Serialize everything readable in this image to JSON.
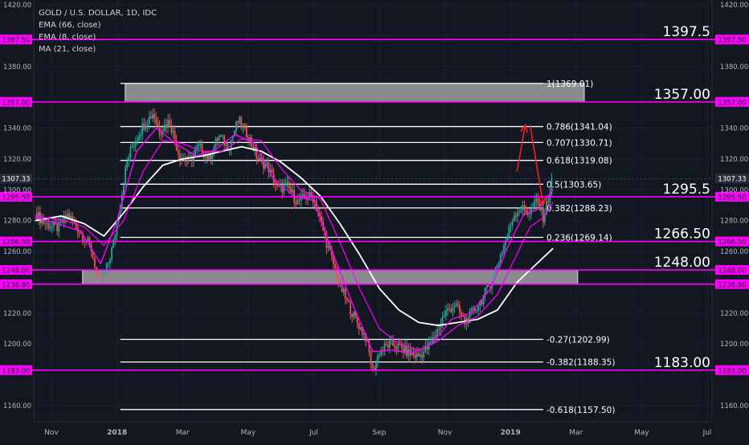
{
  "chart_data": {
    "type": "line",
    "symbol": "GOLD / U.S. DOLLAR, 1D, IDC",
    "indicators": [
      "EMA (66, close)",
      "EMA (8, close)",
      "MA (21, close)"
    ],
    "ylim": [
      1150,
      1420
    ],
    "y_ticks": [
      1160,
      1180,
      1200,
      1220,
      1240,
      1260,
      1280,
      1300,
      1320,
      1340,
      1360,
      1380,
      1400,
      1420
    ],
    "y_tick_labels": [
      "1160.00",
      "1180.00",
      "1200.00",
      "1220.00",
      "1240.00",
      "1260.00",
      "1280.00",
      "1300.00",
      "1320.00",
      "1340.00",
      "1360.00",
      "1380.00",
      "1400.00",
      "1420.00"
    ],
    "x_ticks": [
      {
        "label": "Nov",
        "month": 0
      },
      {
        "label": "2018",
        "month": 2
      },
      {
        "label": "Mar",
        "month": 4
      },
      {
        "label": "May",
        "month": 6
      },
      {
        "label": "Jul",
        "month": 8
      },
      {
        "label": "Sep",
        "month": 10
      },
      {
        "label": "Nov",
        "month": 12
      },
      {
        "label": "2019",
        "month": 14
      },
      {
        "label": "Mar",
        "month": 16
      },
      {
        "label": "May",
        "month": 18
      },
      {
        "label": "Jul",
        "month": 20
      }
    ],
    "current_price": {
      "value": 1307.33,
      "label": "1307.33"
    },
    "colors": {
      "background": "#131722",
      "up": "#26a69a",
      "down": "#ef5350",
      "level": "#ff00ff",
      "fib": "#ffffff",
      "ema66": "#ffffff",
      "ema8": "#ff00ff",
      "ma21": "#ff00ff",
      "zone": "#b2b2b2",
      "arrow": "#ff2020"
    },
    "price_levels": [
      {
        "value": 1397.5,
        "label": "1397.50",
        "big": "1397.5"
      },
      {
        "value": 1357.0,
        "label": "1357.00",
        "big": "1357.00"
      },
      {
        "value": 1295.5,
        "label": "1295.50",
        "big": "1295.5"
      },
      {
        "value": 1266.5,
        "label": "1266.50",
        "big": "1266.50"
      },
      {
        "value": 1248.0,
        "label": "1248.00",
        "big": "1248.00"
      },
      {
        "value": 1238.8,
        "label": "1238.80",
        "big": ""
      },
      {
        "value": 1183.0,
        "label": "1183.00",
        "big": "1183.00"
      }
    ],
    "zones": [
      {
        "from": 1357,
        "to": 1369,
        "start_month": 2.25,
        "end_month": 16.25
      },
      {
        "from": 1238.8,
        "to": 1248,
        "start_month": 0.95,
        "end_month": 16.05
      }
    ],
    "fib_levels": [
      {
        "value": 1369.01,
        "label": "1(1369.01)"
      },
      {
        "value": 1341.04,
        "label": "0.786(1341.04)"
      },
      {
        "value": 1330.71,
        "label": "0.707(1330.71)"
      },
      {
        "value": 1319.08,
        "label": "0.618(1319.08)"
      },
      {
        "value": 1303.65,
        "label": "0.5(1303.65)"
      },
      {
        "value": 1288.23,
        "label": "0.382(1288.23)"
      },
      {
        "value": 1269.14,
        "label": "0.236(1269.14)"
      },
      {
        "value": 1202.99,
        "label": "-0.27(1202.99)"
      },
      {
        "value": 1188.35,
        "label": "-0.382(1188.35)"
      },
      {
        "value": 1157.5,
        "label": "-0.618(1157.50)"
      }
    ],
    "fib_start_month": 2.1,
    "fib_end_month": 15.0,
    "price_path": [
      [
        -0.5,
        1285
      ],
      [
        -0.2,
        1278
      ],
      [
        0.2,
        1275
      ],
      [
        0.5,
        1284
      ],
      [
        0.9,
        1272
      ],
      [
        1.2,
        1263
      ],
      [
        1.45,
        1240
      ],
      [
        1.7,
        1250
      ],
      [
        1.9,
        1266
      ],
      [
        2.1,
        1292
      ],
      [
        2.3,
        1318
      ],
      [
        2.5,
        1330
      ],
      [
        2.8,
        1342
      ],
      [
        3.1,
        1350
      ],
      [
        3.3,
        1338
      ],
      [
        3.6,
        1345
      ],
      [
        3.9,
        1322
      ],
      [
        4.2,
        1318
      ],
      [
        4.5,
        1328
      ],
      [
        4.8,
        1320
      ],
      [
        5.1,
        1335
      ],
      [
        5.4,
        1328
      ],
      [
        5.7,
        1345
      ],
      [
        6.0,
        1335
      ],
      [
        6.3,
        1320
      ],
      [
        6.6,
        1315
      ],
      [
        6.9,
        1300
      ],
      [
        7.2,
        1302
      ],
      [
        7.5,
        1292
      ],
      [
        7.8,
        1296
      ],
      [
        8.0,
        1295
      ],
      [
        8.2,
        1280
      ],
      [
        8.4,
        1265
      ],
      [
        8.6,
        1252
      ],
      [
        8.8,
        1238
      ],
      [
        9.0,
        1228
      ],
      [
        9.3,
        1215
      ],
      [
        9.6,
        1204
      ],
      [
        9.8,
        1182
      ],
      [
        10.0,
        1195
      ],
      [
        10.3,
        1200
      ],
      [
        10.6,
        1198
      ],
      [
        10.9,
        1194
      ],
      [
        11.2,
        1192
      ],
      [
        11.5,
        1198
      ],
      [
        11.8,
        1210
      ],
      [
        12.0,
        1220
      ],
      [
        12.3,
        1226
      ],
      [
        12.6,
        1214
      ],
      [
        12.9,
        1222
      ],
      [
        13.1,
        1228
      ],
      [
        13.4,
        1240
      ],
      [
        13.7,
        1258
      ],
      [
        13.9,
        1270
      ],
      [
        14.1,
        1284
      ],
      [
        14.3,
        1288
      ],
      [
        14.6,
        1285
      ],
      [
        14.8,
        1293
      ],
      [
        15.0,
        1282
      ],
      [
        15.2,
        1298
      ],
      [
        15.3,
        1309
      ]
    ],
    "ema66_path": [
      [
        -0.5,
        1280
      ],
      [
        0.3,
        1283
      ],
      [
        1.0,
        1278
      ],
      [
        1.6,
        1270
      ],
      [
        2.2,
        1285
      ],
      [
        2.8,
        1302
      ],
      [
        3.4,
        1316
      ],
      [
        4.0,
        1320
      ],
      [
        4.6,
        1322
      ],
      [
        5.2,
        1325
      ],
      [
        5.8,
        1328
      ],
      [
        6.4,
        1325
      ],
      [
        7.0,
        1318
      ],
      [
        7.6,
        1308
      ],
      [
        8.2,
        1296
      ],
      [
        8.8,
        1278
      ],
      [
        9.4,
        1258
      ],
      [
        10.0,
        1236
      ],
      [
        10.6,
        1222
      ],
      [
        11.2,
        1214
      ],
      [
        11.8,
        1212
      ],
      [
        12.4,
        1214
      ],
      [
        13.0,
        1216
      ],
      [
        13.6,
        1222
      ],
      [
        14.2,
        1240
      ],
      [
        14.8,
        1252
      ],
      [
        15.3,
        1262
      ]
    ],
    "ema8_path": [
      [
        -0.5,
        1282
      ],
      [
        0.2,
        1278
      ],
      [
        0.9,
        1273
      ],
      [
        1.5,
        1252
      ],
      [
        2.0,
        1280
      ],
      [
        2.6,
        1325
      ],
      [
        3.2,
        1340
      ],
      [
        3.8,
        1330
      ],
      [
        4.4,
        1322
      ],
      [
        5.0,
        1326
      ],
      [
        5.6,
        1336
      ],
      [
        6.2,
        1330
      ],
      [
        6.8,
        1306
      ],
      [
        7.4,
        1296
      ],
      [
        8.0,
        1293
      ],
      [
        8.6,
        1258
      ],
      [
        9.2,
        1225
      ],
      [
        9.8,
        1195
      ],
      [
        10.4,
        1196
      ],
      [
        11.0,
        1194
      ],
      [
        11.6,
        1200
      ],
      [
        12.2,
        1216
      ],
      [
        12.8,
        1220
      ],
      [
        13.4,
        1236
      ],
      [
        13.9,
        1262
      ],
      [
        14.4,
        1284
      ],
      [
        14.8,
        1287
      ],
      [
        15.3,
        1300
      ]
    ],
    "ma21_path": [
      [
        -0.5,
        1283
      ],
      [
        0.4,
        1280
      ],
      [
        1.0,
        1276
      ],
      [
        1.6,
        1264
      ],
      [
        2.2,
        1280
      ],
      [
        2.8,
        1312
      ],
      [
        3.4,
        1332
      ],
      [
        4.0,
        1330
      ],
      [
        4.6,
        1325
      ],
      [
        5.2,
        1325
      ],
      [
        5.8,
        1333
      ],
      [
        6.4,
        1332
      ],
      [
        7.0,
        1314
      ],
      [
        7.6,
        1300
      ],
      [
        8.2,
        1294
      ],
      [
        8.8,
        1266
      ],
      [
        9.4,
        1236
      ],
      [
        10.0,
        1210
      ],
      [
        10.6,
        1200
      ],
      [
        11.2,
        1196
      ],
      [
        11.8,
        1202
      ],
      [
        12.4,
        1212
      ],
      [
        13.0,
        1218
      ],
      [
        13.6,
        1232
      ],
      [
        14.1,
        1254
      ],
      [
        14.6,
        1276
      ],
      [
        15.0,
        1282
      ],
      [
        15.3,
        1292
      ]
    ],
    "arrow_up": {
      "from": [
        14.2,
        1312
      ],
      "to": [
        14.45,
        1342
      ]
    },
    "arrow_down": {
      "from": [
        14.6,
        1342
      ],
      "to": [
        15.0,
        1290
      ]
    }
  }
}
